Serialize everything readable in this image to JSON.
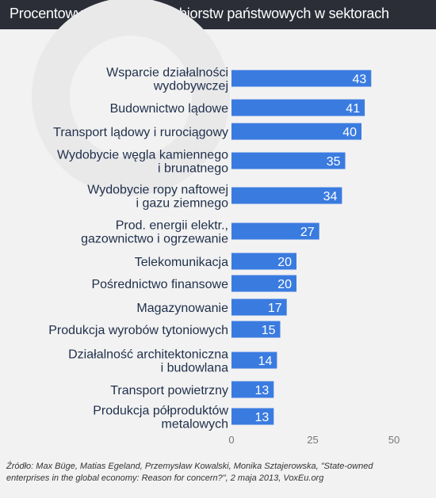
{
  "header": {
    "title": "Procentowy udział przedsiębiorstw państwowych w sektorach"
  },
  "source": {
    "line1": "Źródło: Max Büge, Matias Egeland, Przemysław Kowalski, Monika Sztajerowska, \"State-owned",
    "line2": "enterprises in the global economy: Reason for concern?\", 2 maja 2013, VoxEu.org"
  },
  "chart_data": {
    "type": "bar",
    "orientation": "horizontal",
    "title": "Procentowy udział przedsiębiorstw państwowych w sektorach",
    "categories": [
      [
        "Wsparcie działalności",
        "wydobywczej"
      ],
      [
        "Budownictwo lądowe"
      ],
      [
        "Transport lądowy i rurociągowy"
      ],
      [
        "Wydobycie węgla kamiennego",
        "i brunatnego"
      ],
      [
        "Wydobycie ropy naftowej",
        "i gazu ziemnego"
      ],
      [
        "Prod. energii elektr.,",
        "gazownictwo i ogrzewanie"
      ],
      [
        "Telekomunikacja"
      ],
      [
        "Pośrednictwo finansowe"
      ],
      [
        "Magazynowanie"
      ],
      [
        "Produkcja wyrobów tytoniowych"
      ],
      [
        "Działalność architektoniczna",
        "i budowlana"
      ],
      [
        "Transport powietrzny"
      ],
      [
        "Produkcja półproduktów",
        "metalowych"
      ]
    ],
    "values": [
      43,
      41,
      40,
      35,
      34,
      27,
      20,
      20,
      17,
      15,
      14,
      13,
      13
    ],
    "xlim": [
      0,
      50
    ],
    "xticks": [
      0,
      25,
      50
    ],
    "grid": false,
    "colors": {
      "bar": "#3a7be0",
      "label": "#1f2f4a",
      "value_text": "#ffffff",
      "axis": "#777777"
    }
  }
}
